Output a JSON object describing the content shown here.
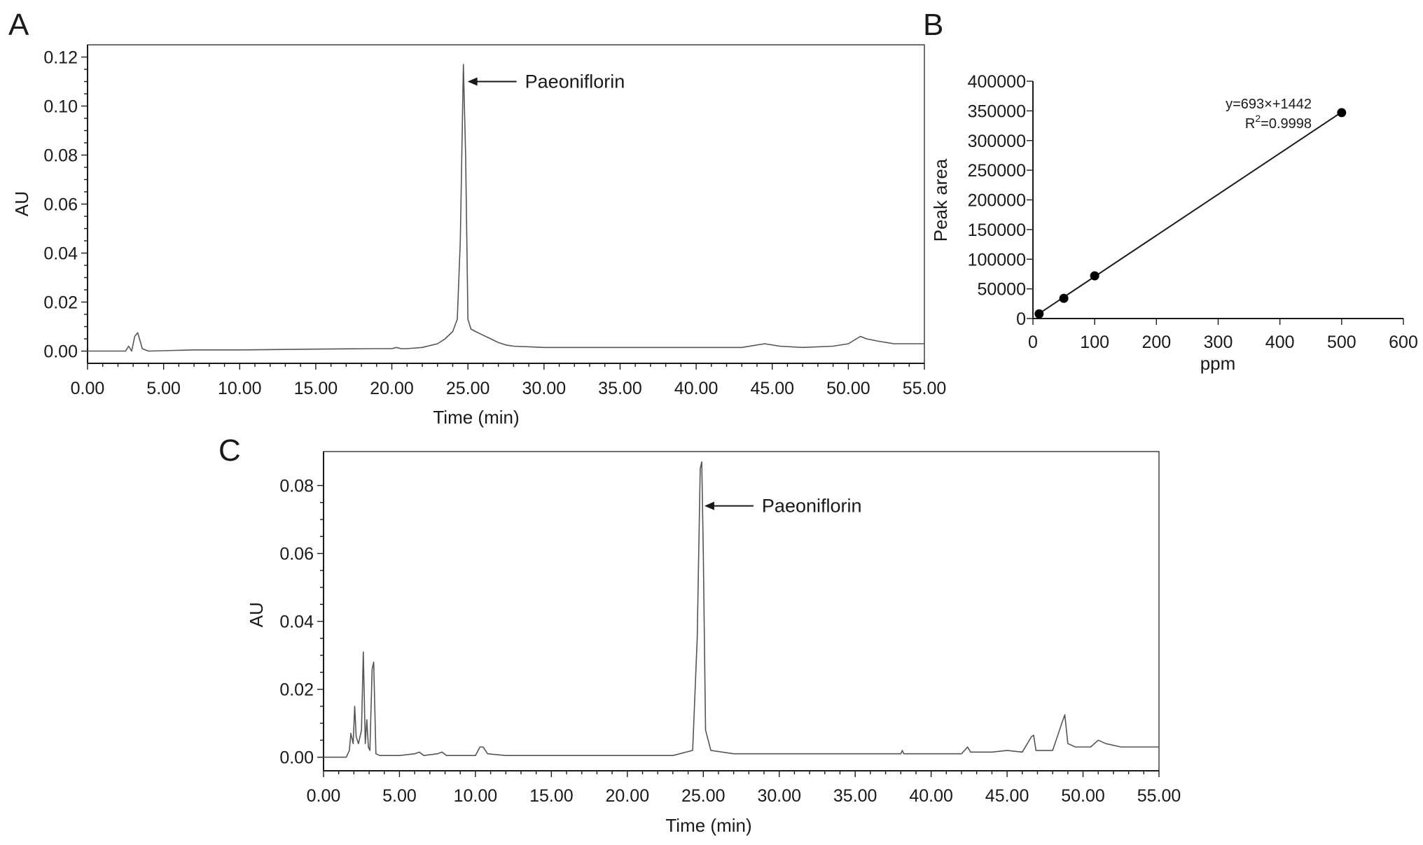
{
  "chart_data": [
    {
      "panel": "A",
      "type": "line",
      "xlabel": "Time (min)",
      "ylabel": "AU",
      "xlim": [
        0,
        55
      ],
      "ylim": [
        -0.005,
        0.125
      ],
      "xticks": [
        "0.00",
        "5.00",
        "10.00",
        "15.00",
        "20.00",
        "25.00",
        "30.00",
        "35.00",
        "40.00",
        "45.00",
        "50.00",
        "55.00"
      ],
      "yticks": [
        "0.00",
        "0.02",
        "0.04",
        "0.06",
        "0.08",
        "0.10",
        "0.12"
      ],
      "annotations": [
        {
          "text": "Paeoniflorin",
          "x": 24.7,
          "y": 0.11
        }
      ],
      "series": [
        {
          "x": [
            0,
            2.5,
            2.7,
            2.9,
            3.1,
            3.3,
            3.6,
            4,
            7,
            10,
            15,
            19,
            20,
            20.3,
            20.6,
            21,
            22,
            23,
            23.5,
            24,
            24.3,
            24.5,
            24.7,
            24.85,
            25,
            25.2,
            25.5,
            26,
            26.5,
            27,
            27.5,
            28,
            30,
            35,
            40,
            43,
            44.5,
            45.5,
            47,
            49,
            50,
            50.8,
            51.2,
            52,
            53,
            55
          ],
          "y": [
            0,
            0,
            0.002,
            0,
            0.006,
            0.0075,
            0.001,
            0,
            0.0005,
            0.0005,
            0.0008,
            0.001,
            0.001,
            0.0015,
            0.001,
            0.001,
            0.0015,
            0.003,
            0.005,
            0.008,
            0.013,
            0.045,
            0.117,
            0.08,
            0.013,
            0.009,
            0.008,
            0.0065,
            0.005,
            0.0035,
            0.0025,
            0.002,
            0.0015,
            0.0015,
            0.0015,
            0.0015,
            0.003,
            0.002,
            0.0015,
            0.002,
            0.003,
            0.006,
            0.005,
            0.004,
            0.003,
            0.003
          ]
        }
      ]
    },
    {
      "panel": "B",
      "type": "scatter",
      "xlabel": "ppm",
      "ylabel": "Peak area",
      "xlim": [
        0,
        600
      ],
      "ylim": [
        0,
        400000
      ],
      "xticks": [
        "0",
        "100",
        "200",
        "300",
        "400",
        "500",
        "600"
      ],
      "yticks": [
        "0",
        "50000",
        "100000",
        "150000",
        "200000",
        "250000",
        "300000",
        "350000",
        "400000"
      ],
      "equation": "y=693×+1442",
      "r2_prefix": "R",
      "r2_sup": "2",
      "r2_value": "=0.9998",
      "fit": {
        "slope": 693,
        "intercept": 1442,
        "x_range": [
          10,
          500
        ]
      },
      "points": {
        "x": [
          10,
          50,
          100,
          500
        ],
        "y": [
          8000,
          34000,
          72000,
          347000
        ]
      }
    },
    {
      "panel": "C",
      "type": "line",
      "xlabel": "Time (min)",
      "ylabel": "AU",
      "xlim": [
        0,
        55
      ],
      "ylim": [
        -0.004,
        0.09
      ],
      "xticks": [
        "0.00",
        "5.00",
        "10.00",
        "15.00",
        "20.00",
        "25.00",
        "30.00",
        "35.00",
        "40.00",
        "45.00",
        "50.00",
        "55.00"
      ],
      "yticks": [
        "0.00",
        "0.02",
        "0.04",
        "0.06",
        "0.08"
      ],
      "annotations": [
        {
          "text": "Paeoniflorin",
          "x": 24.8,
          "y": 0.074
        }
      ],
      "series": [
        {
          "x": [
            0,
            1.5,
            1.7,
            1.8,
            1.95,
            2.05,
            2.15,
            2.3,
            2.5,
            2.62,
            2.75,
            2.85,
            2.95,
            3.05,
            3.2,
            3.3,
            3.45,
            3.7,
            5,
            6,
            6.3,
            6.6,
            7.5,
            7.8,
            8.1,
            10,
            10.3,
            10.5,
            10.8,
            12,
            15,
            20,
            23,
            24.3,
            24.6,
            24.8,
            24.9,
            25,
            25.15,
            25.5,
            27,
            30,
            38,
            38.1,
            38.2,
            42,
            42.4,
            42.6,
            42.8,
            44,
            45,
            46,
            46.6,
            46.75,
            46.9,
            47.5,
            48,
            48.6,
            48.8,
            49,
            49.5,
            50.5,
            51,
            51.5,
            52.5,
            54,
            55
          ],
          "y": [
            0,
            0,
            0.002,
            0.007,
            0.004,
            0.015,
            0.006,
            0.004,
            0.008,
            0.031,
            0.004,
            0.011,
            0.003,
            0.002,
            0.026,
            0.028,
            0.001,
            0.0005,
            0.0005,
            0.001,
            0.0015,
            0.0005,
            0.001,
            0.0015,
            0.0005,
            0.0005,
            0.003,
            0.003,
            0.001,
            0.0005,
            0.0005,
            0.0005,
            0.0005,
            0.002,
            0.035,
            0.085,
            0.087,
            0.06,
            0.008,
            0.002,
            0.001,
            0.001,
            0.001,
            0.002,
            0.001,
            0.001,
            0.003,
            0.0015,
            0.0015,
            0.0015,
            0.002,
            0.0015,
            0.006,
            0.0065,
            0.002,
            0.002,
            0.002,
            0.01,
            0.0125,
            0.004,
            0.003,
            0.003,
            0.005,
            0.004,
            0.003,
            0.003,
            0.003
          ]
        }
      ]
    }
  ]
}
